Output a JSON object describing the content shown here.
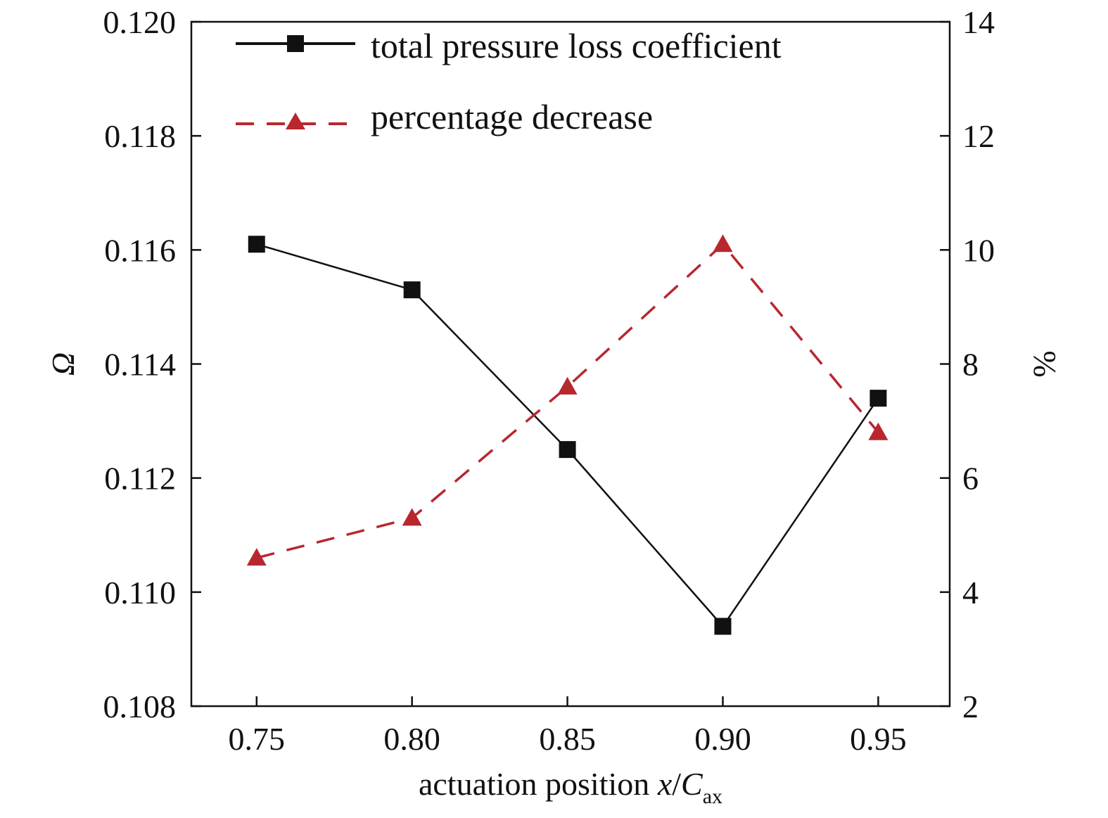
{
  "chart_data": {
    "type": "line",
    "x": [
      0.75,
      0.8,
      0.85,
      0.9,
      0.95
    ],
    "x_tick_labels": [
      "0.75",
      "0.80",
      "0.85",
      "0.90",
      "0.95"
    ],
    "xlim": [
      0.729,
      0.973
    ],
    "xlabel": "actuation position x/Cax",
    "xlabel_parts": {
      "main": "actuation position ",
      "italic_x": "x",
      "slash": "/",
      "italic_C": "C",
      "subscript": "ax"
    },
    "y_left": {
      "label": "Ω",
      "lim": [
        0.108,
        0.12
      ],
      "ticks": [
        0.108,
        0.11,
        0.112,
        0.114,
        0.116,
        0.118,
        0.12
      ],
      "tick_labels": [
        "0.108",
        "0.110",
        "0.112",
        "0.114",
        "0.116",
        "0.118",
        "0.120"
      ]
    },
    "y_right": {
      "label": "%",
      "lim": [
        2,
        14
      ],
      "ticks": [
        2,
        4,
        6,
        8,
        10,
        12,
        14
      ],
      "tick_labels": [
        "2",
        "4",
        "6",
        "8",
        "10",
        "12",
        "14"
      ]
    },
    "series": [
      {
        "name": "total pressure loss coefficient",
        "axis": "left",
        "x": [
          0.75,
          0.8,
          0.85,
          0.9,
          0.95
        ],
        "values": [
          0.1161,
          0.1153,
          0.1125,
          0.1094,
          0.1134
        ],
        "color": "#111111",
        "marker": "square",
        "line_style": "solid"
      },
      {
        "name": "percentage decrease",
        "axis": "right",
        "x": [
          0.75,
          0.8,
          0.85,
          0.9,
          0.95
        ],
        "values": [
          4.6,
          5.3,
          7.6,
          10.1,
          6.8
        ],
        "color": "#b8272e",
        "marker": "triangle",
        "line_style": "dashed"
      }
    ],
    "legend_position": "top-left",
    "grid": false
  }
}
